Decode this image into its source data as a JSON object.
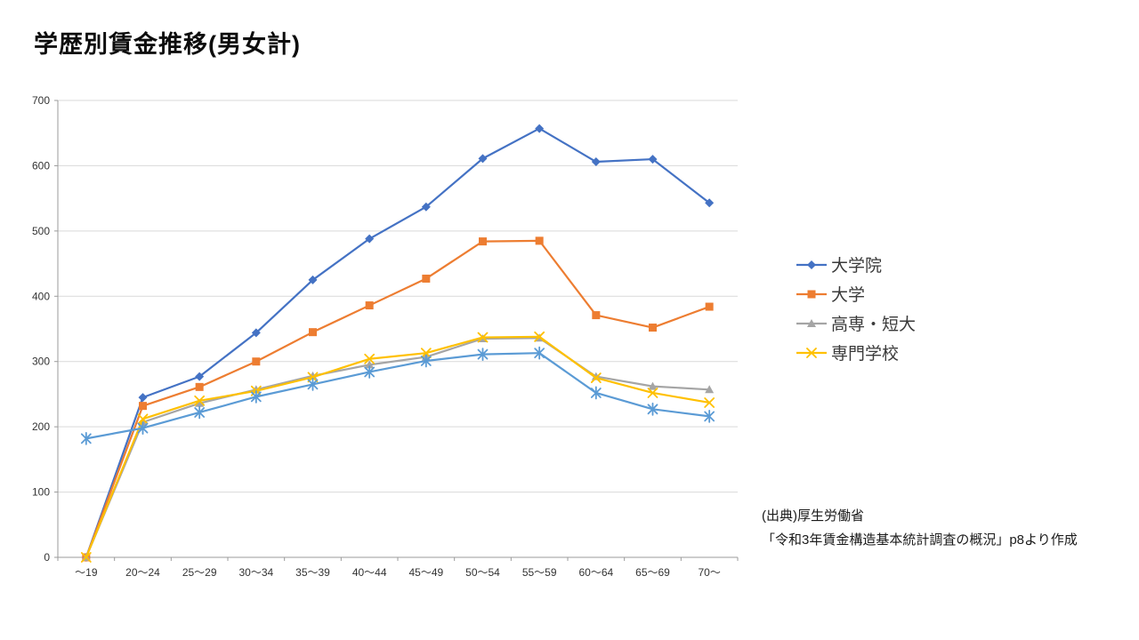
{
  "title": "学歴別賃金推移(男女計)",
  "source_note": {
    "line1": "(出典)厚生労働省",
    "line2": "「令和3年賃金構造基本統計調査の概況」p8より作成"
  },
  "chart_data": {
    "type": "line",
    "title": "学歴別賃金推移(男女計)",
    "xlabel": "",
    "ylabel": "",
    "ylim": [
      0,
      700
    ],
    "yticks": [
      0,
      100,
      200,
      300,
      400,
      500,
      600,
      700
    ],
    "grid": true,
    "legend_position": "right",
    "categories": [
      "～19",
      "20～24",
      "25～29",
      "30～34",
      "35～39",
      "40～44",
      "45～49",
      "50～54",
      "55～59",
      "60～64",
      "65～69",
      "70～"
    ],
    "series": [
      {
        "id": "grad-school",
        "name": "大学院",
        "color": "#4472C4",
        "marker": "diamond",
        "in_legend": true,
        "values": [
          0,
          245,
          277,
          344,
          425,
          488,
          537,
          611,
          657,
          606,
          610,
          543
        ]
      },
      {
        "id": "university",
        "name": "大学",
        "color": "#ED7D31",
        "marker": "square",
        "in_legend": true,
        "values": [
          0,
          232,
          261,
          300,
          345,
          386,
          427,
          484,
          485,
          371,
          352,
          384
        ]
      },
      {
        "id": "tech-junior-college",
        "name": "高専・短大",
        "color": "#A5A5A5",
        "marker": "triangle",
        "in_legend": true,
        "values": [
          0,
          207,
          236,
          257,
          278,
          295,
          307,
          335,
          336,
          277,
          262,
          257
        ]
      },
      {
        "id": "vocational-school",
        "name": "専門学校",
        "color": "#FFC000",
        "marker": "x",
        "in_legend": true,
        "values": [
          0,
          212,
          240,
          255,
          276,
          304,
          313,
          337,
          338,
          275,
          252,
          237
        ]
      },
      {
        "id": "unlabeled-series",
        "name": "",
        "color": "#5B9BD5",
        "marker": "asterisk",
        "in_legend": false,
        "values": [
          182,
          198,
          222,
          246,
          265,
          284,
          301,
          311,
          313,
          252,
          227,
          216
        ]
      }
    ]
  }
}
